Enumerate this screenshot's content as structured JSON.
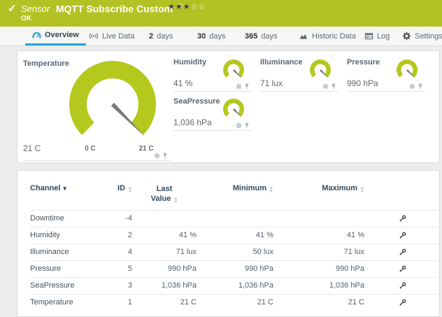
{
  "colors": {
    "header_bg": "#b3c124",
    "gauge_green": "#b5c81e",
    "tab_blue": "#25a5d8",
    "navy": "#31475e"
  },
  "header": {
    "kind": "Sensor",
    "title": "MQTT Subscribe Custom",
    "status": "OK",
    "rating": {
      "filled": 3,
      "total": 5
    }
  },
  "tabs": {
    "overview": "Overview",
    "live_data": "Live Data",
    "days2_num": "2",
    "days2_label": "days",
    "days30_num": "30",
    "days30_label": "days",
    "days365_num": "365",
    "days365_label": "days",
    "historic": "Historic Data",
    "log": "Log",
    "settings": "Settings"
  },
  "gauges": {
    "primary": {
      "name": "Temperature",
      "value": "21 C",
      "scale_min": "0 C",
      "scale_max": "21 C"
    },
    "small": [
      {
        "name": "Humidity",
        "value": "41 %"
      },
      {
        "name": "Illuminance",
        "value": "71 lux"
      },
      {
        "name": "Pressure",
        "value": "990 hPa"
      },
      {
        "name": "SeaPressure",
        "value": "1,036 hPa"
      }
    ]
  },
  "table": {
    "headers": {
      "channel": "Channel",
      "id": "ID",
      "last": "Last Value",
      "min": "Minimum",
      "max": "Maximum"
    },
    "rows": [
      {
        "channel": "Downtime",
        "id": "-4",
        "last": "",
        "min": "",
        "max": ""
      },
      {
        "channel": "Humidity",
        "id": "2",
        "last": "41 %",
        "min": "41 %",
        "max": "41 %"
      },
      {
        "channel": "Illuminance",
        "id": "4",
        "last": "71 lux",
        "min": "50 lux",
        "max": "71 lux"
      },
      {
        "channel": "Pressure",
        "id": "5",
        "last": "990 hPa",
        "min": "990 hPa",
        "max": "990 hPa"
      },
      {
        "channel": "SeaPressure",
        "id": "3",
        "last": "1,036 hPa",
        "min": "1,036 hPa",
        "max": "1,036 hPa"
      },
      {
        "channel": "Temperature",
        "id": "1",
        "last": "21 C",
        "min": "21 C",
        "max": "21 C"
      }
    ]
  }
}
